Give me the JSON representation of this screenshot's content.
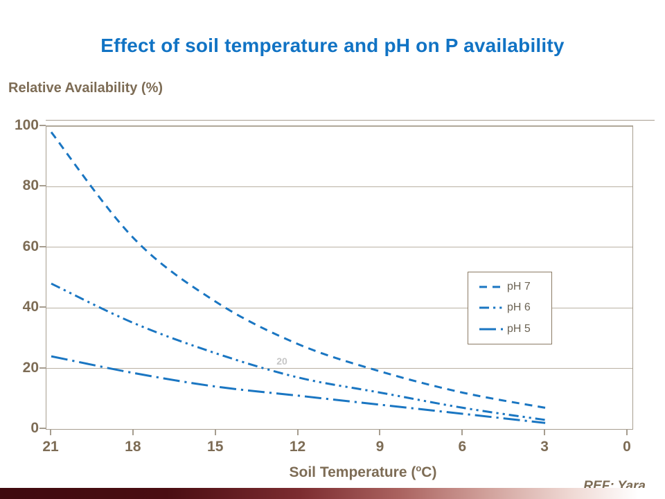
{
  "header": {
    "title": "Effect of soil temperature and pH on P availability"
  },
  "axes": {
    "y_title": "Relative Availability (%)",
    "x_title_pre": "Soil Temperature (",
    "x_title_sup": "o",
    "x_title_post": "C)"
  },
  "stray_label": "20",
  "footer": {
    "ref": "REF: Yara"
  },
  "colors": {
    "title_blue": "#1173c4",
    "text_brown": "#7d6c55",
    "axis_line": "#a69d8f",
    "gridline": "#b9b1a3",
    "line_blue": "#1a76c2",
    "legend_border": "#8a7a63",
    "legend_text": "#6b6354",
    "footer_gradient": [
      "#3f0a0f",
      "#4a0d12",
      "#7c2c30",
      "#aa625f",
      "#d0a09a",
      "#efd9d4",
      "#ffffff"
    ],
    "footer_gradient_stops": [
      0,
      25,
      45,
      60,
      73,
      86,
      96
    ]
  },
  "chart_data": {
    "type": "line",
    "title": "Effect of soil temperature and pH on P availability",
    "xlabel": "Soil Temperature (oC)",
    "ylabel": "Relative Availability (%)",
    "x_axis_reversed": true,
    "xticks": [
      21,
      18,
      15,
      12,
      9,
      6,
      3,
      0
    ],
    "yticks": [
      100,
      80,
      60,
      40,
      20,
      0
    ],
    "xlim": [
      21,
      0
    ],
    "ylim": [
      0,
      100
    ],
    "grid": "horizontal",
    "legend_position": "center-right",
    "line_color": "#1a76c2",
    "series": [
      {
        "name": "pH 7",
        "dash_style": "dashed",
        "x": [
          21,
          18,
          15,
          12,
          9,
          6,
          3
        ],
        "values": [
          98,
          63,
          42,
          28,
          19,
          12,
          7
        ]
      },
      {
        "name": "pH 6",
        "dash_style": "dash-dot-dot",
        "x": [
          21,
          18,
          15,
          12,
          9,
          6,
          3
        ],
        "values": [
          48,
          35,
          25,
          17,
          12,
          7,
          3
        ]
      },
      {
        "name": "pH 5",
        "dash_style": "long-dash-dot",
        "x": [
          21,
          18,
          15,
          12,
          9,
          6,
          3
        ],
        "values": [
          24,
          18.5,
          14,
          11,
          8,
          5,
          2
        ]
      }
    ]
  }
}
